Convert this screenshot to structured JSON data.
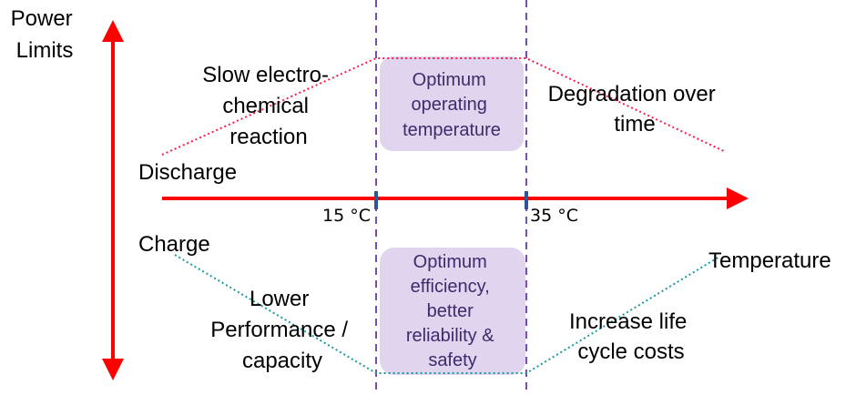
{
  "y_axis": {
    "label_lines": [
      "Power",
      "Limits"
    ]
  },
  "x_axis": {
    "label": "Temperature",
    "ticks": [
      "15 °C",
      "35 °C"
    ]
  },
  "zones": {
    "discharge_label": "Discharge",
    "charge_label": "Charge",
    "top_left": [
      "Slow electro-",
      "chemical",
      "reaction"
    ],
    "top_right": [
      "Degradation over",
      "time"
    ],
    "bottom_left": [
      "Lower",
      "Performance /",
      "capacity"
    ],
    "bottom_right": [
      "Increase life",
      "cycle costs"
    ],
    "top_box": [
      "Optimum",
      "operating",
      "temperature"
    ],
    "bottom_box": [
      "Optimum",
      "efficiency,",
      "better",
      "reliability &",
      "safety"
    ]
  },
  "colors": {
    "axis": "#ff0000",
    "discharge_line": "#ff1a4a",
    "charge_line": "#1a9a9a",
    "box_fill": "#e0d4ee",
    "box_text": "#3f2a6b",
    "divider": "#7a4fa8",
    "tick": "#2f5597"
  }
}
